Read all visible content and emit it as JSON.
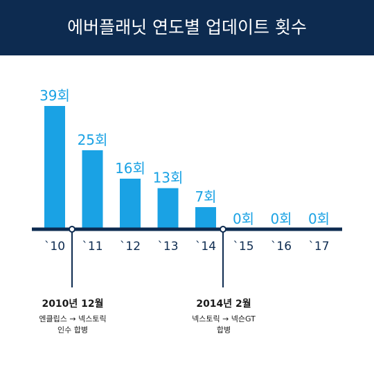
{
  "header": {
    "title": "에버플래닛 연도별 업데이트 횟수"
  },
  "colors": {
    "header_bg": "#0d2b50",
    "bar": "#1aa2e4",
    "axis": "#0d2b50",
    "value_label": "#1aa2e4",
    "tick_label": "#0d2b50"
  },
  "chart_data": {
    "type": "bar",
    "categories": [
      "`10",
      "`11",
      "`12",
      "`13",
      "`14",
      "`15",
      "`16",
      "`17"
    ],
    "values": [
      39,
      25,
      16,
      13,
      7,
      0,
      0,
      0
    ],
    "value_labels": [
      "39회",
      "25회",
      "16회",
      "13회",
      "7회",
      "0회",
      "0회",
      "0회"
    ],
    "ylim": [
      0,
      39
    ],
    "grid": false
  },
  "events": [
    {
      "title": "2010년 12월",
      "desc1": "엔클립스 → 넥스토릭",
      "desc2": "인수 합병"
    },
    {
      "title": "2014년 2월",
      "desc1": "넥스토릭 → 넥슨GT",
      "desc2": "합병"
    }
  ]
}
